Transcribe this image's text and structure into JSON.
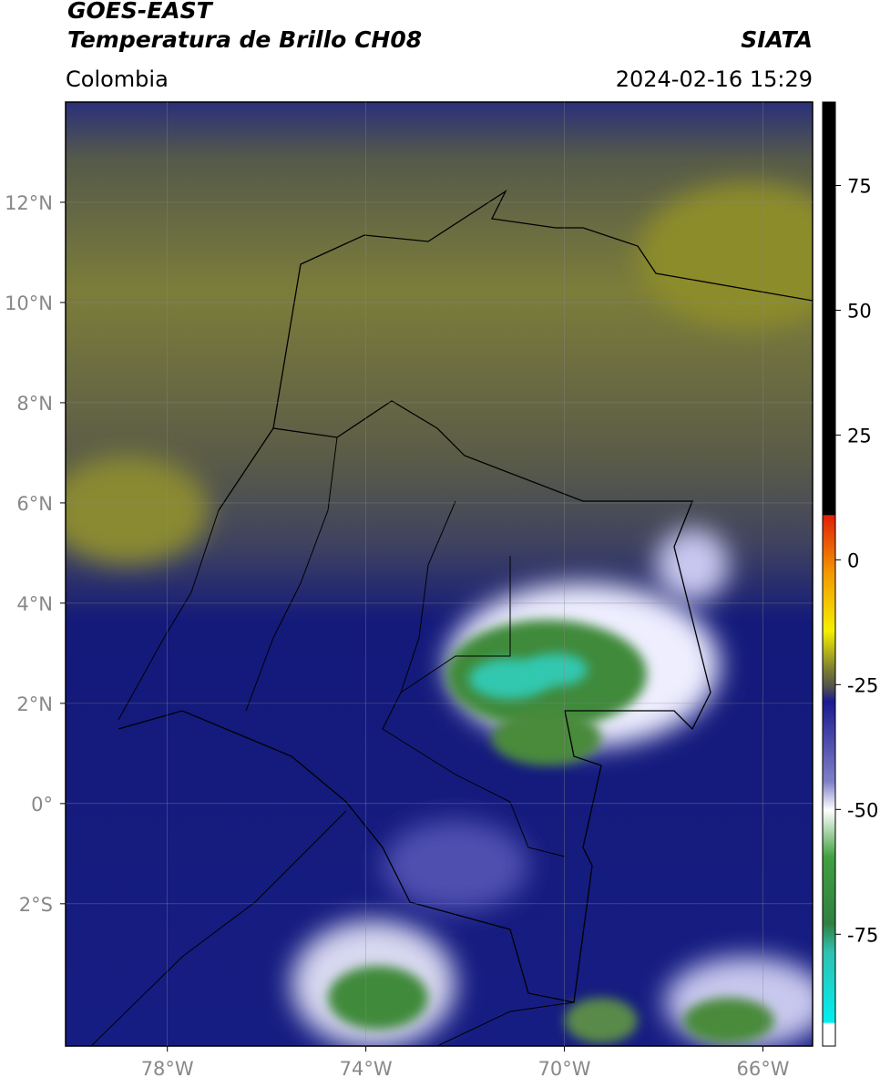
{
  "header": {
    "title": "GOES-EAST",
    "subtitle": "Temperatura de Brillo CH08",
    "source": "SIATA",
    "region": "Colombia",
    "datetime": "2024-02-16 15:29"
  },
  "map": {
    "lonlim": [
      -80.05,
      -65.0
    ],
    "latlim": [
      -4.84,
      14.0
    ],
    "lonticks": [
      {
        "value": -78,
        "label": "78°W"
      },
      {
        "value": -74,
        "label": "74°W"
      },
      {
        "value": -70,
        "label": "70°W"
      },
      {
        "value": -66,
        "label": "66°W"
      }
    ],
    "latticks": [
      {
        "value": 12,
        "label": "12°N"
      },
      {
        "value": 10,
        "label": "10°N"
      },
      {
        "value": 8,
        "label": "8°N"
      },
      {
        "value": 6,
        "label": "6°N"
      },
      {
        "value": 4,
        "label": "4°N"
      },
      {
        "value": 2,
        "label": "2°N"
      },
      {
        "value": 0,
        "label": "0°"
      },
      {
        "value": -2,
        "label": "2°S"
      }
    ]
  },
  "colorbar": {
    "lim": [
      -97.4,
      91.7
    ],
    "ticks": [
      75,
      50,
      25,
      0,
      -25,
      -50,
      -75
    ]
  }
}
